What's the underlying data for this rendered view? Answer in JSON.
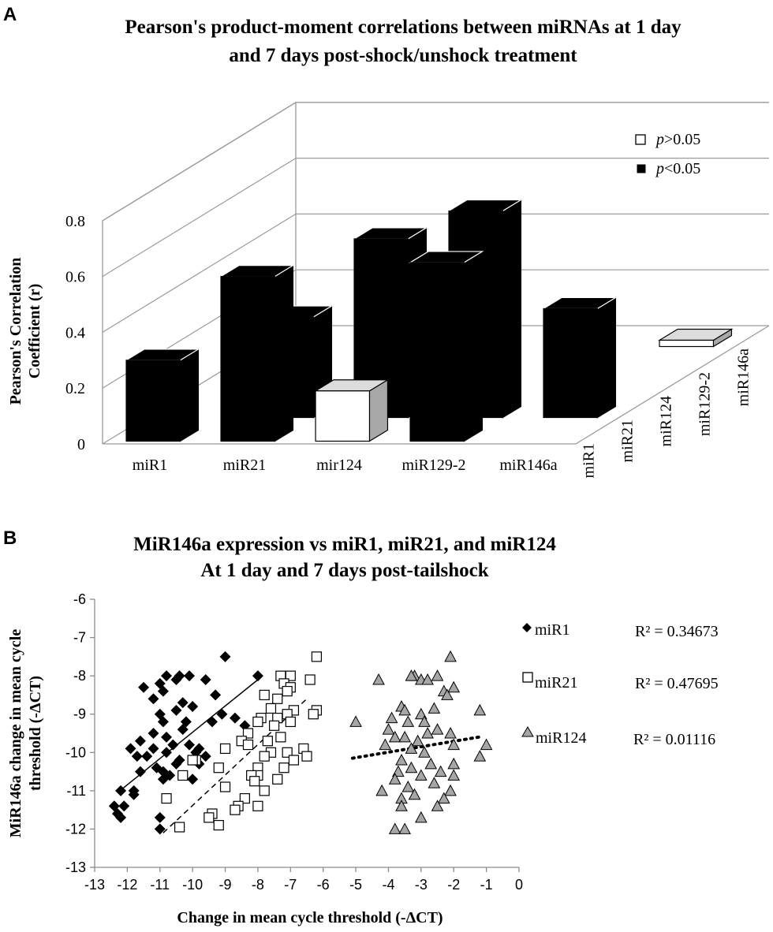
{
  "panel_a": {
    "letter": "A",
    "chart_data": {
      "type": "bar",
      "title_lines": [
        "Pearson's product-moment correlations between miRNAs at 1 day",
        "and 7 days post-shock/unshock treatment"
      ],
      "ylabel_lines": [
        "Pearson's Correlation",
        "Coefficient (r)"
      ],
      "ylim": [
        0,
        0.8
      ],
      "yticks": [
        "0",
        "0.2",
        "0.4",
        "0.6",
        "0.8"
      ],
      "x_categories": [
        "miR1",
        "miR21",
        "mir124",
        "miR129-2",
        "miR146a"
      ],
      "depth_categories": [
        "miR1",
        "miR21",
        "miR124",
        "miR129-2",
        "miR146a"
      ],
      "legend": [
        {
          "label_italic": "p",
          "label_rest": ">0.05",
          "color": "#ffffff"
        },
        {
          "label_italic": "p",
          "label_rest": "<0.05",
          "color": "#000000"
        }
      ],
      "bars": [
        {
          "x": "miR1",
          "row": "miR1",
          "value": 0.29,
          "significant": true
        },
        {
          "x": "miR21",
          "row": "miR1",
          "value": 0.59,
          "significant": true
        },
        {
          "x": "miR21",
          "row": "miR21",
          "value": 0.36,
          "significant": true
        },
        {
          "x": "mir124",
          "row": "miR1",
          "value": 0.18,
          "significant": false
        },
        {
          "x": "mir124",
          "row": "miR21",
          "value": 0.64,
          "significant": true
        },
        {
          "x": "mir124",
          "row": "miR124",
          "value": 0.14,
          "significant": false
        },
        {
          "x": "miR129-2",
          "row": "miR1",
          "value": 0.64,
          "significant": true
        },
        {
          "x": "miR129-2",
          "row": "miR21",
          "value": 0.74,
          "significant": true
        },
        {
          "x": "miR146a",
          "row": "miR21",
          "value": 0.39,
          "significant": true
        },
        {
          "x": "miR146a",
          "row": "miR146a",
          "value": 0.01,
          "significant": false
        }
      ]
    }
  },
  "panel_b": {
    "letter": "B",
    "chart_data": {
      "type": "scatter",
      "title_lines": [
        "MiR146a expression vs miR1, miR21, and miR124",
        "At 1 day and 7 days post-tailshock"
      ],
      "xlabel": "Change in mean cycle threshold  (-ΔCT)",
      "ylabel_lines": [
        "MiR146a change in mean cycle",
        "threshold  (-ΔCT)"
      ],
      "xlim": [
        -13,
        0
      ],
      "ylim": [
        -13,
        -6
      ],
      "xticks": [
        "-13",
        "-12",
        "-11",
        "-10",
        "-9",
        "-8",
        "-7",
        "-6",
        "-5",
        "-4",
        "-3",
        "-2",
        "-1",
        "0"
      ],
      "yticks": [
        "-6",
        "-7",
        "-8",
        "-9",
        "-10",
        "-11",
        "-12",
        "-13"
      ],
      "series": [
        {
          "name": "miR1",
          "marker": "diamond",
          "fill": "#000000",
          "r2": "R² = 0.34673",
          "trend": "solid",
          "trend_line": [
            [
              -12.3,
              -11.05
            ],
            [
              -8.0,
              -8.1
            ]
          ],
          "points": [
            [
              -9.0,
              -7.5
            ],
            [
              -10.8,
              -8.0
            ],
            [
              -10.4,
              -8.0
            ],
            [
              -10.1,
              -8.0
            ],
            [
              -8.0,
              -8.0
            ],
            [
              -11.0,
              -8.2
            ],
            [
              -10.5,
              -8.1
            ],
            [
              -9.6,
              -8.1
            ],
            [
              -11.5,
              -8.3
            ],
            [
              -10.9,
              -8.4
            ],
            [
              -11.2,
              -8.6
            ],
            [
              -10.3,
              -8.7
            ],
            [
              -9.3,
              -8.5
            ],
            [
              -10.0,
              -8.8
            ],
            [
              -10.5,
              -8.9
            ],
            [
              -11.0,
              -9.0
            ],
            [
              -9.1,
              -9.0
            ],
            [
              -10.9,
              -9.2
            ],
            [
              -9.4,
              -9.2
            ],
            [
              -10.2,
              -9.2
            ],
            [
              -8.7,
              -9.1
            ],
            [
              -8.4,
              -9.3
            ],
            [
              -11.2,
              -9.5
            ],
            [
              -10.8,
              -9.6
            ],
            [
              -10.3,
              -9.4
            ],
            [
              -11.6,
              -9.7
            ],
            [
              -10.6,
              -9.8
            ],
            [
              -11.9,
              -9.9
            ],
            [
              -11.2,
              -9.9
            ],
            [
              -10.1,
              -9.8
            ],
            [
              -9.8,
              -9.9
            ],
            [
              -9.9,
              -10.0
            ],
            [
              -11.4,
              -10.1
            ],
            [
              -10.8,
              -10.0
            ],
            [
              -9.6,
              -10.1
            ],
            [
              -11.7,
              -10.1
            ],
            [
              -9.8,
              -10.3
            ],
            [
              -10.4,
              -10.2
            ],
            [
              -10.5,
              -10.3
            ],
            [
              -11.1,
              -10.4
            ],
            [
              -10.9,
              -10.5
            ],
            [
              -11.6,
              -10.5
            ],
            [
              -10.7,
              -10.6
            ],
            [
              -10.9,
              -10.7
            ],
            [
              -10.0,
              -10.7
            ],
            [
              -11.8,
              -11.0
            ],
            [
              -11.8,
              -11.1
            ],
            [
              -12.2,
              -11.0
            ],
            [
              -12.4,
              -11.4
            ],
            [
              -12.1,
              -11.4
            ],
            [
              -12.3,
              -11.6
            ],
            [
              -12.2,
              -11.7
            ],
            [
              -11.0,
              -11.7
            ],
            [
              -11.0,
              -12.0
            ]
          ]
        },
        {
          "name": "miR21",
          "marker": "square",
          "fill": "#ffffff",
          "r2": "R² = 0.47695",
          "trend": "dashed",
          "trend_line": [
            [
              -10.9,
              -12.1
            ],
            [
              -6.5,
              -8.6
            ]
          ],
          "points": [
            [
              -6.2,
              -7.5
            ],
            [
              -7.3,
              -8.0
            ],
            [
              -7.0,
              -8.0
            ],
            [
              -6.4,
              -8.1
            ],
            [
              -7.2,
              -8.2
            ],
            [
              -7.0,
              -8.3
            ],
            [
              -7.1,
              -8.4
            ],
            [
              -7.8,
              -8.5
            ],
            [
              -7.4,
              -8.6
            ],
            [
              -7.6,
              -8.85
            ],
            [
              -6.9,
              -8.9
            ],
            [
              -6.2,
              -8.9
            ],
            [
              -6.3,
              -9.0
            ],
            [
              -7.1,
              -9.0
            ],
            [
              -7.4,
              -9.1
            ],
            [
              -7.9,
              -9.1
            ],
            [
              -8.0,
              -9.2
            ],
            [
              -7.0,
              -9.2
            ],
            [
              -7.5,
              -9.3
            ],
            [
              -8.3,
              -9.5
            ],
            [
              -7.3,
              -9.6
            ],
            [
              -8.5,
              -9.7
            ],
            [
              -7.7,
              -9.7
            ],
            [
              -8.3,
              -9.8
            ],
            [
              -9.0,
              -9.9
            ],
            [
              -6.6,
              -9.9
            ],
            [
              -7.6,
              -10.0
            ],
            [
              -7.1,
              -10.0
            ],
            [
              -6.5,
              -10.1
            ],
            [
              -7.8,
              -10.1
            ],
            [
              -9.9,
              -10.2
            ],
            [
              -10.0,
              -10.2
            ],
            [
              -6.9,
              -10.2
            ],
            [
              -8.0,
              -10.4
            ],
            [
              -9.2,
              -10.4
            ],
            [
              -7.2,
              -10.4
            ],
            [
              -10.3,
              -10.6
            ],
            [
              -8.0,
              -10.6
            ],
            [
              -8.2,
              -10.6
            ],
            [
              -7.4,
              -10.7
            ],
            [
              -8.1,
              -10.75
            ],
            [
              -7.8,
              -11.0
            ],
            [
              -9.0,
              -10.9
            ],
            [
              -10.8,
              -11.2
            ],
            [
              -8.4,
              -11.2
            ],
            [
              -8.6,
              -11.4
            ],
            [
              -8.7,
              -11.5
            ],
            [
              -8.0,
              -11.4
            ],
            [
              -9.4,
              -11.6
            ],
            [
              -9.5,
              -11.7
            ],
            [
              -10.4,
              -11.95
            ],
            [
              -9.2,
              -11.9
            ]
          ]
        },
        {
          "name": "miR124",
          "marker": "triangle",
          "fill": "#a6a6a6",
          "r2": "R² = 0.01116",
          "trend": "dotted",
          "trend_line": [
            [
              -5.1,
              -10.15
            ],
            [
              -1.1,
              -9.58
            ]
          ],
          "points": [
            [
              -2.1,
              -7.5
            ],
            [
              -3.2,
              -8.0
            ],
            [
              -3.3,
              -8.0
            ],
            [
              -2.5,
              -8.0
            ],
            [
              -4.3,
              -8.1
            ],
            [
              -3.0,
              -8.1
            ],
            [
              -2.8,
              -8.1
            ],
            [
              -2.3,
              -8.4
            ],
            [
              -2.2,
              -8.5
            ],
            [
              -2.0,
              -8.3
            ],
            [
              -3.6,
              -8.8
            ],
            [
              -3.5,
              -8.9
            ],
            [
              -2.6,
              -8.85
            ],
            [
              -3.0,
              -9.0
            ],
            [
              -1.2,
              -8.9
            ],
            [
              -3.9,
              -9.1
            ],
            [
              -3.4,
              -9.2
            ],
            [
              -2.9,
              -9.2
            ],
            [
              -5.0,
              -9.2
            ],
            [
              -4.0,
              -9.4
            ],
            [
              -2.5,
              -9.4
            ],
            [
              -3.8,
              -9.6
            ],
            [
              -2.8,
              -9.5
            ],
            [
              -3.1,
              -9.7
            ],
            [
              -2.1,
              -9.5
            ],
            [
              -3.5,
              -9.6
            ],
            [
              -4.1,
              -9.8
            ],
            [
              -2.0,
              -9.8
            ],
            [
              -1.0,
              -9.8
            ],
            [
              -3.3,
              -9.9
            ],
            [
              -2.9,
              -10.0
            ],
            [
              -1.2,
              -10.1
            ],
            [
              -3.6,
              -10.2
            ],
            [
              -2.7,
              -10.3
            ],
            [
              -3.3,
              -10.4
            ],
            [
              -2.0,
              -10.3
            ],
            [
              -3.7,
              -10.5
            ],
            [
              -2.4,
              -10.5
            ],
            [
              -3.0,
              -10.6
            ],
            [
              -2.0,
              -10.6
            ],
            [
              -3.8,
              -10.7
            ],
            [
              -2.6,
              -10.8
            ],
            [
              -3.4,
              -10.9
            ],
            [
              -4.2,
              -11.0
            ],
            [
              -2.1,
              -11.0
            ],
            [
              -3.6,
              -11.2
            ],
            [
              -3.2,
              -11.1
            ],
            [
              -2.3,
              -11.2
            ],
            [
              -3.6,
              -11.4
            ],
            [
              -2.5,
              -11.4
            ],
            [
              -3.0,
              -11.7
            ],
            [
              -3.8,
              -12.0
            ],
            [
              -3.5,
              -12.0
            ]
          ]
        }
      ]
    }
  }
}
